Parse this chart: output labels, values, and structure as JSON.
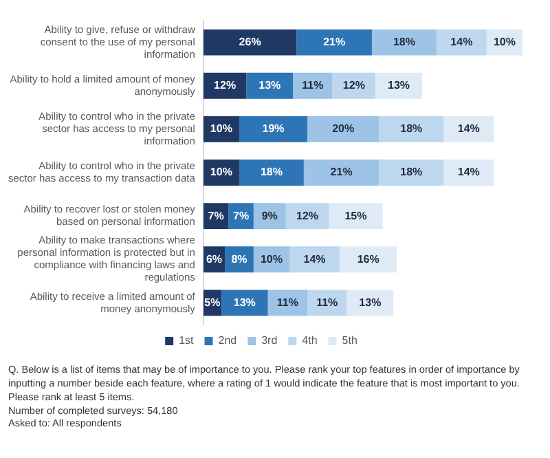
{
  "chart_data": {
    "type": "bar",
    "orientation": "horizontal",
    "stacked": true,
    "legend": "bottom",
    "grid": false,
    "categories": [
      "Ability to give, refuse or withdraw consent to the use of my personal information",
      "Ability to hold a limited amount of money anonymously",
      "Ability to control who in the private sector has access to my personal information",
      "Ability to control who in the private sector has access to my transaction data",
      "Ability to recover lost or stolen money based on personal information",
      "Ability to make transactions where personal information is protected but in compliance with financing laws and regulations",
      "Ability to receive a limited amount of money anonymously"
    ],
    "series": [
      {
        "name": "1st",
        "color": "#203864",
        "values": [
          26,
          12,
          10,
          10,
          7,
          6,
          5
        ],
        "value_labels": [
          "26%",
          "12%",
          "10%",
          "10%",
          "7%",
          "6%",
          "5%"
        ]
      },
      {
        "name": "2nd",
        "color": "#2e75b6",
        "values": [
          21,
          13,
          19,
          18,
          7,
          8,
          13
        ],
        "value_labels": [
          "21%",
          "13%",
          "19%",
          "18%",
          "7%",
          "8%",
          "13%"
        ]
      },
      {
        "name": "3rd",
        "color": "#9dc3e6",
        "values": [
          18,
          11,
          20,
          21,
          9,
          10,
          11
        ],
        "value_labels": [
          "18%",
          "11%",
          "20%",
          "21%",
          "9%",
          "10%",
          "11%"
        ]
      },
      {
        "name": "4th",
        "color": "#bdd7ee",
        "values": [
          14,
          12,
          18,
          18,
          12,
          14,
          11
        ],
        "value_labels": [
          "14%",
          "12%",
          "18%",
          "18%",
          "12%",
          "14%",
          "11%"
        ]
      },
      {
        "name": "5th",
        "color": "#deebf7",
        "values": [
          10,
          13,
          14,
          14,
          15,
          16,
          13
        ],
        "value_labels": [
          "10%",
          "13%",
          "14%",
          "14%",
          "15%",
          "16%",
          "13%"
        ]
      }
    ],
    "annotations": [
      "Q. Below is a list of items that may be of importance to you. Please rank your top features in order of importance by inputting a number beside each feature, where a rating of 1 would indicate the feature that is most important to you. Please rank at least 5 items.",
      "Number of completed surveys: 54,180",
      "Asked to: All respondents"
    ]
  }
}
